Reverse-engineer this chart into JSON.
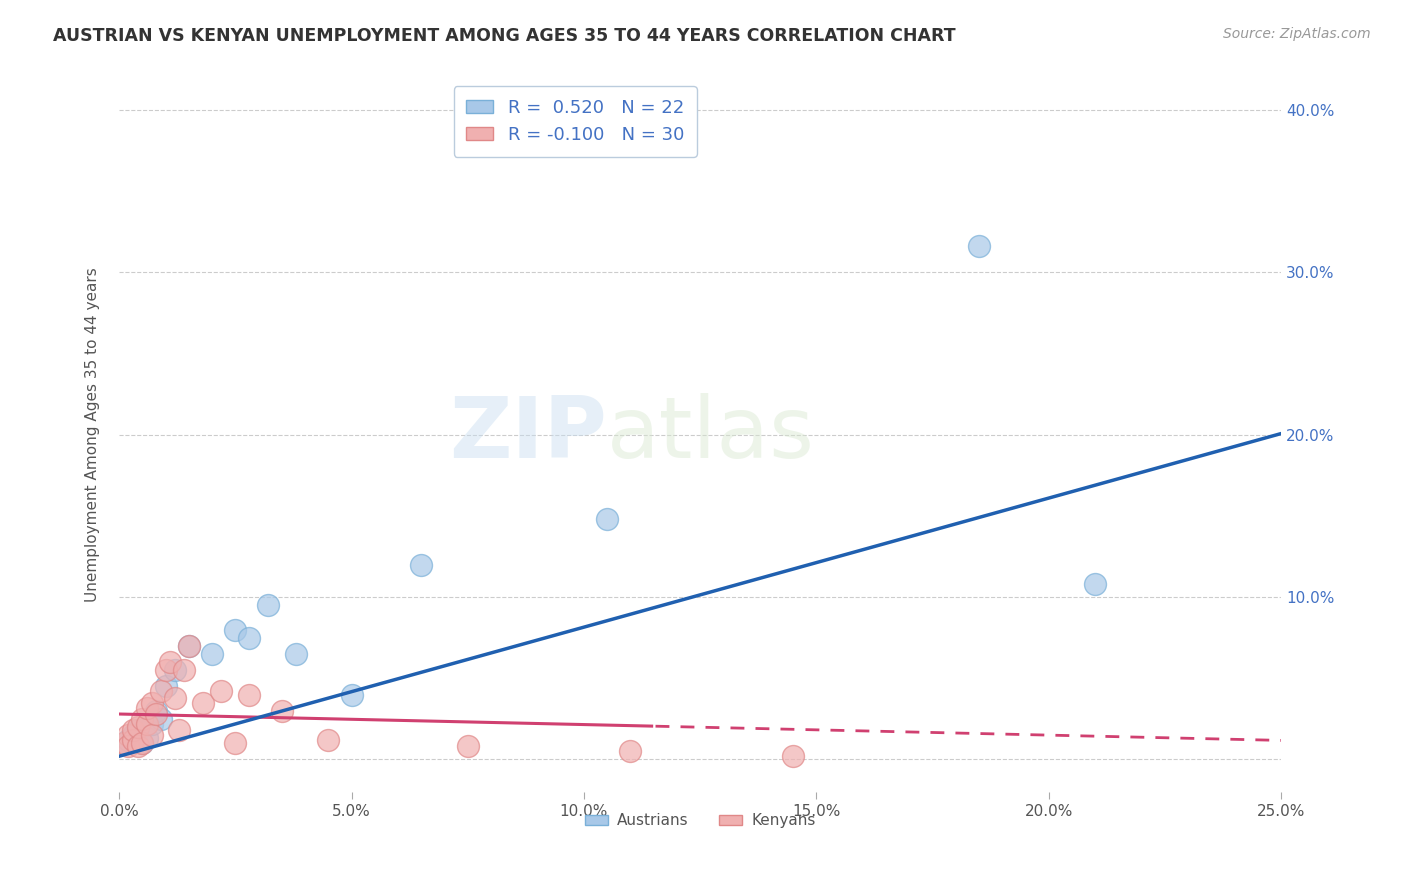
{
  "title": "AUSTRIAN VS KENYAN UNEMPLOYMENT AMONG AGES 35 TO 44 YEARS CORRELATION CHART",
  "source": "Source: ZipAtlas.com",
  "ylabel": "Unemployment Among Ages 35 to 44 years",
  "xlim": [
    0.0,
    0.25
  ],
  "ylim": [
    -0.02,
    0.42
  ],
  "xticks": [
    0.0,
    0.05,
    0.1,
    0.15,
    0.2,
    0.25
  ],
  "yticks": [
    0.0,
    0.1,
    0.2,
    0.3,
    0.4
  ],
  "xticklabels": [
    "0.0%",
    "5.0%",
    "10.0%",
    "15.0%",
    "20.0%",
    "25.0%"
  ],
  "yticklabels_right": [
    "",
    "10.0%",
    "20.0%",
    "30.0%",
    "40.0%"
  ],
  "austria_color": "#a8c8e8",
  "kenya_color": "#f0b0b0",
  "austria_edge_color": "#7ab0d8",
  "kenya_edge_color": "#e08888",
  "regression_austria_color": "#2060b0",
  "regression_kenya_color": "#d04070",
  "austria_R": 0.52,
  "austria_N": 22,
  "kenya_R": -0.1,
  "kenya_N": 30,
  "austria_x": [
    0.001,
    0.002,
    0.003,
    0.004,
    0.005,
    0.006,
    0.007,
    0.008,
    0.009,
    0.01,
    0.012,
    0.015,
    0.02,
    0.025,
    0.028,
    0.032,
    0.038,
    0.05,
    0.065,
    0.105,
    0.185,
    0.21
  ],
  "austria_y": [
    0.01,
    0.012,
    0.015,
    0.018,
    0.01,
    0.013,
    0.022,
    0.03,
    0.025,
    0.045,
    0.055,
    0.07,
    0.065,
    0.08,
    0.075,
    0.095,
    0.065,
    0.04,
    0.12,
    0.148,
    0.316,
    0.108
  ],
  "kenya_x": [
    0.001,
    0.002,
    0.002,
    0.003,
    0.003,
    0.004,
    0.004,
    0.005,
    0.005,
    0.006,
    0.006,
    0.007,
    0.007,
    0.008,
    0.009,
    0.01,
    0.011,
    0.012,
    0.013,
    0.014,
    0.015,
    0.018,
    0.022,
    0.025,
    0.028,
    0.035,
    0.045,
    0.075,
    0.11,
    0.145
  ],
  "kenya_y": [
    0.01,
    0.015,
    0.008,
    0.012,
    0.018,
    0.008,
    0.02,
    0.025,
    0.01,
    0.022,
    0.032,
    0.015,
    0.035,
    0.028,
    0.042,
    0.055,
    0.06,
    0.038,
    0.018,
    0.055,
    0.07,
    0.035,
    0.042,
    0.01,
    0.04,
    0.03,
    0.012,
    0.008,
    0.005,
    0.002
  ],
  "watermark_zip": "ZIP",
  "watermark_atlas": "atlas",
  "background_color": "#ffffff",
  "grid_color": "#cccccc",
  "legend_box_color": "#e8f0f8",
  "legend_box_edge": "#bbccdd"
}
